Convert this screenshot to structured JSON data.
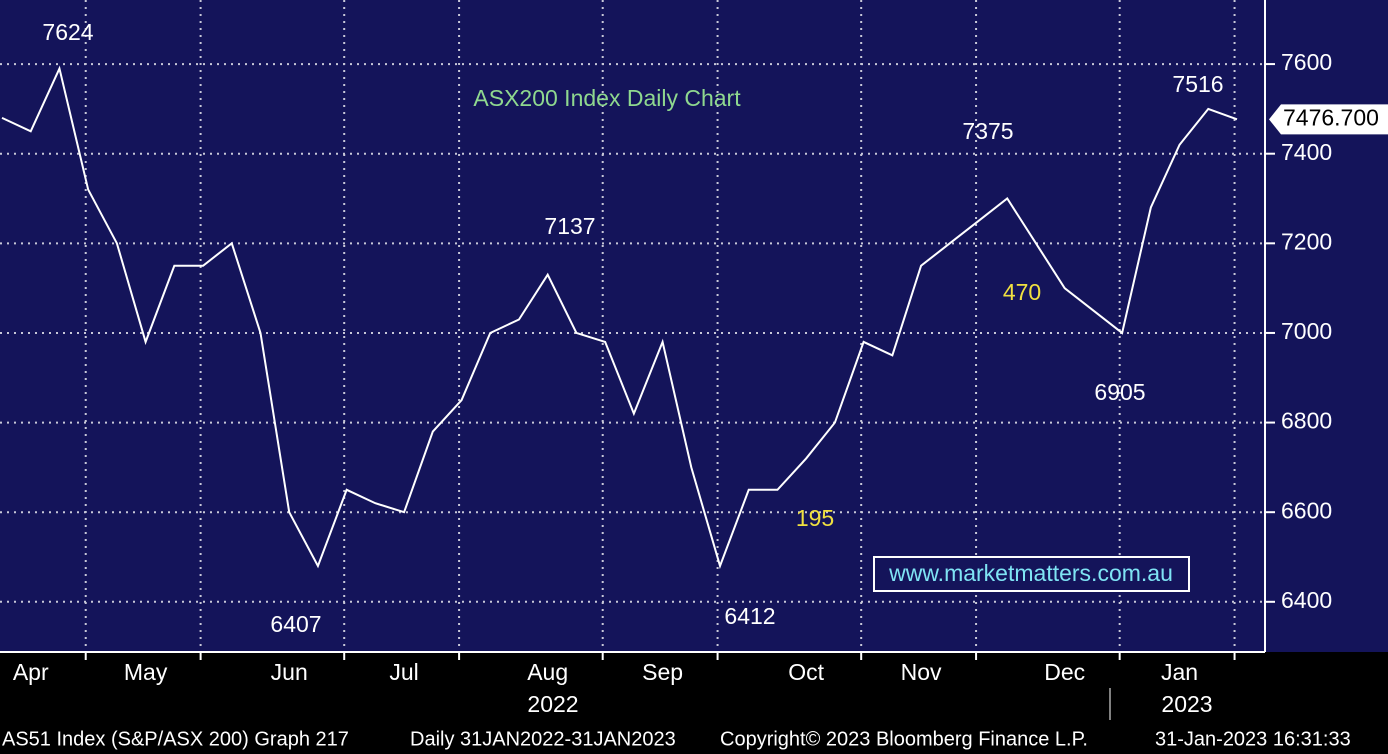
{
  "chart_data": {
    "type": "line",
    "title": "ASX200 Index Daily Chart",
    "categories": [
      null,
      "Apr",
      null,
      null,
      null,
      "May",
      null,
      null,
      null,
      null,
      "Jun",
      null,
      null,
      null,
      "Jul",
      null,
      null,
      null,
      null,
      "Aug",
      null,
      null,
      null,
      "Sep",
      null,
      null,
      null,
      null,
      "Oct",
      null,
      null,
      null,
      "Nov",
      null,
      null,
      null,
      null,
      "Dec",
      null,
      null,
      null,
      "Jan",
      null,
      null
    ],
    "series": [
      {
        "name": "AS51 Index",
        "color": "#ffffff",
        "values": [
          7480,
          7450,
          7590,
          7320,
          7200,
          6980,
          7150,
          7150,
          7200,
          7000,
          6600,
          6480,
          6650,
          6620,
          6600,
          6780,
          6850,
          7000,
          7030,
          7130,
          7000,
          6980,
          6820,
          6980,
          6700,
          6480,
          6650,
          6650,
          6720,
          6800,
          6980,
          6950,
          7150,
          7200,
          7250,
          7300,
          7200,
          7100,
          7050,
          7000,
          7280,
          7420,
          7500,
          7476.7
        ]
      }
    ],
    "ylim": [
      6288,
      7743
    ],
    "yticks": [
      6400,
      6600,
      6800,
      7000,
      7200,
      7400,
      7600
    ],
    "grid": true,
    "last_value": 7476.7,
    "last_value_label": "7476.700",
    "annotations": [
      "7624",
      "6407",
      "7137",
      "6412",
      "195",
      "7375",
      "470",
      "6905",
      "7516"
    ],
    "years": [
      "2022",
      "2023"
    ],
    "website": "www.marketmatters.com.au",
    "footer": [
      "AS51 Index (S&P/ASX 200) Graph 217",
      "Daily 31JAN2022-31JAN2023",
      "Copyright© 2023 Bloomberg Finance L.P.",
      "31-Jan-2023 16:31:33"
    ]
  }
}
